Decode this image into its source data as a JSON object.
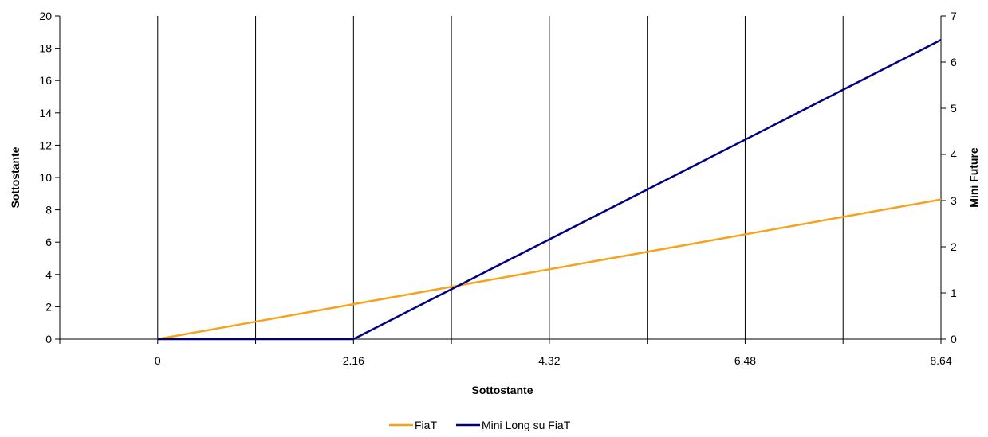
{
  "chart_data": {
    "type": "line",
    "x": [
      0,
      1.08,
      2.16,
      3.24,
      4.32,
      5.4,
      6.48,
      7.56,
      8.64
    ],
    "x_tick_labels": [
      "0",
      "2.16",
      "4.32",
      "6.48",
      "8.64"
    ],
    "xlabel": "Sottostante",
    "ylabel_left": "Sottostante",
    "ylabel_right": "Mini Future",
    "ylim_left": [
      0,
      20
    ],
    "ylim_right": [
      0,
      7
    ],
    "y_ticks_left": [
      "0",
      "2",
      "4",
      "6",
      "8",
      "10",
      "12",
      "14",
      "16",
      "18",
      "20"
    ],
    "y_ticks_right": [
      "0",
      "1",
      "2",
      "3",
      "4",
      "5",
      "6",
      "7"
    ],
    "grid": "vertical",
    "legend_position": "bottom",
    "series": [
      {
        "name": "FiaT",
        "axis": "left",
        "color": "#F7A21B",
        "values": [
          0,
          1.08,
          2.16,
          3.24,
          4.32,
          5.4,
          6.48,
          7.56,
          8.64
        ]
      },
      {
        "name": "Mini Long su FiaT",
        "axis": "right",
        "color": "#000080",
        "values": [
          0,
          0,
          0,
          1.08,
          2.16,
          3.24,
          4.32,
          5.4,
          6.48
        ]
      }
    ]
  }
}
